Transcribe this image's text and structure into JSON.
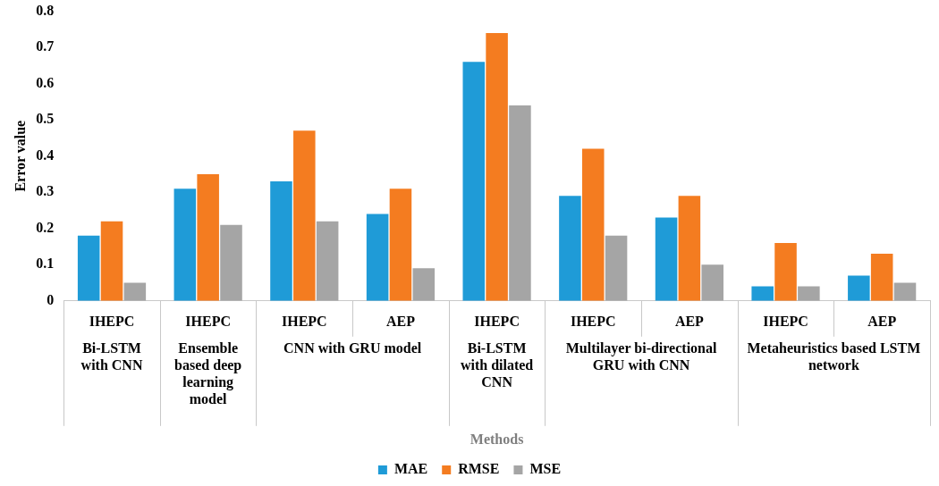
{
  "chart_data": {
    "type": "bar",
    "ylabel": "Error value",
    "categories": [
      "IHEPC",
      "IHEPC",
      "IHEPC",
      "AEP",
      "IHEPC",
      "IHEPC",
      "AEP",
      "IHEPC",
      "AEP"
    ],
    "series": [
      {
        "name": "MAE",
        "color": "#1f9bd7",
        "values": [
          0.18,
          0.31,
          0.33,
          0.24,
          0.66,
          0.29,
          0.23,
          0.04,
          0.07
        ]
      },
      {
        "name": "RMSE",
        "color": "#f47c20",
        "values": [
          0.22,
          0.35,
          0.47,
          0.31,
          0.74,
          0.42,
          0.29,
          0.16,
          0.13
        ]
      },
      {
        "name": "MSE",
        "color": "#a5a5a5",
        "values": [
          0.05,
          0.21,
          0.22,
          0.09,
          0.54,
          0.18,
          0.1,
          0.04,
          0.05
        ]
      }
    ],
    "annotations": [
      "Bi-LSTM with CNN",
      "Ensemble based deep learning model",
      "CNN with GRU model",
      "Bi-LSTM with dilated CNN",
      "Multilayer bi-directional GRU with CNN",
      "Metaheuristics based LSTM network",
      "Methods"
    ],
    "ylim": [
      0,
      0.8
    ],
    "yticks": [
      0,
      0.1,
      0.2,
      0.3,
      0.4,
      0.5,
      0.6,
      0.7,
      0.8
    ],
    "grid": false,
    "legend": "bottom"
  }
}
